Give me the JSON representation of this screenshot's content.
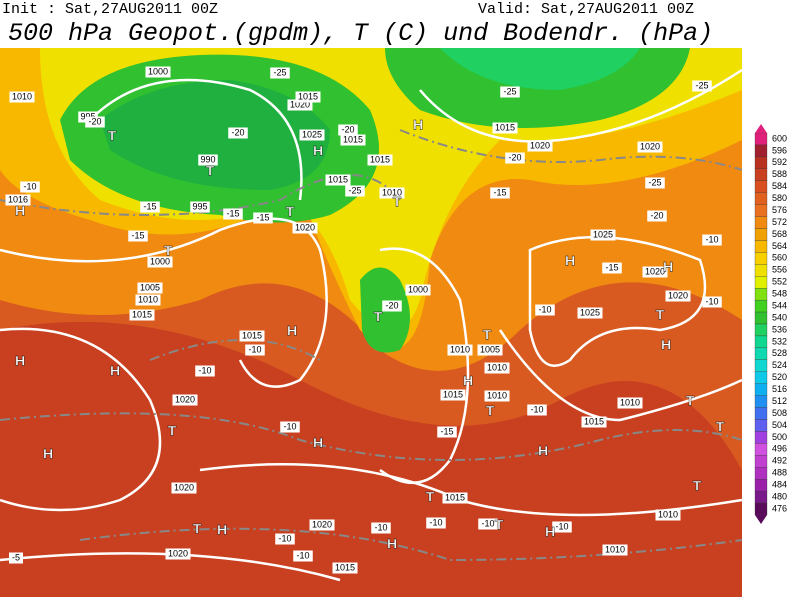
{
  "header": {
    "init": "Init : Sat,27AUG2011 00Z",
    "valid": "Valid: Sat,27AUG2011 00Z",
    "title": "500 hPa Geopot.(gpdm), T (C) und Bodendr. (hPa)"
  },
  "colorbar": {
    "ticks": [
      600,
      596,
      592,
      588,
      584,
      580,
      576,
      572,
      568,
      564,
      560,
      556,
      552,
      548,
      544,
      540,
      536,
      532,
      528,
      524,
      520,
      516,
      512,
      508,
      504,
      500,
      496,
      492,
      488,
      484,
      480,
      476
    ],
    "colors": [
      "#e0207a",
      "#a02030",
      "#b83020",
      "#c84020",
      "#d85020",
      "#e06020",
      "#e87020",
      "#f08a10",
      "#f0a000",
      "#f8b800",
      "#f8d000",
      "#f0e000",
      "#e0f000",
      "#80e010",
      "#40d020",
      "#30c030",
      "#20d060",
      "#10d890",
      "#10d8b0",
      "#10d8d0",
      "#10c8e8",
      "#10b0f0",
      "#2090f0",
      "#4070f0",
      "#6060f0",
      "#a040e0",
      "#d050e0",
      "#c040d0",
      "#b030c0",
      "#9a20aa",
      "#7a1a8a",
      "#5a0a5a"
    ]
  },
  "map_labels": [
    "1000",
    "1010",
    "995",
    "-20",
    "T",
    "-20",
    "-25",
    "1020",
    "1015",
    "1025",
    "H",
    "1015",
    "-20",
    "990",
    "T",
    "1015",
    "-25",
    "1015",
    "1010",
    "T",
    "1016",
    "H",
    "-15",
    "995",
    "-15",
    "-15",
    "T",
    "1020",
    "-10",
    "-15",
    "T",
    "1000",
    "1005",
    "1010",
    "1015",
    "H",
    "1025",
    "1020",
    "H",
    "-10",
    "1020",
    "-10",
    "1025",
    "T",
    "H",
    "1015",
    "-10",
    "H",
    "-20",
    "T",
    "1000",
    "1010",
    "1005",
    "T",
    "1010",
    "-10",
    "H",
    "1015",
    "1010",
    "T",
    "-10",
    "1015",
    "1010",
    "T",
    "T",
    "H",
    "H",
    "-10",
    "1020",
    "T",
    "-10",
    "H",
    "-15",
    "H",
    "H",
    "1020",
    "T",
    "1015",
    "T",
    "1010",
    "T",
    "H",
    "1020",
    "-10",
    "-10",
    "-10",
    "T",
    "-10",
    "H",
    "H",
    "-10",
    "-10",
    "1020",
    "1015",
    "-5",
    "1010",
    "-25",
    "-25",
    "1015",
    "1020",
    "-25",
    "-20",
    "-20",
    "1020",
    "-15",
    "H",
    "-15"
  ]
}
